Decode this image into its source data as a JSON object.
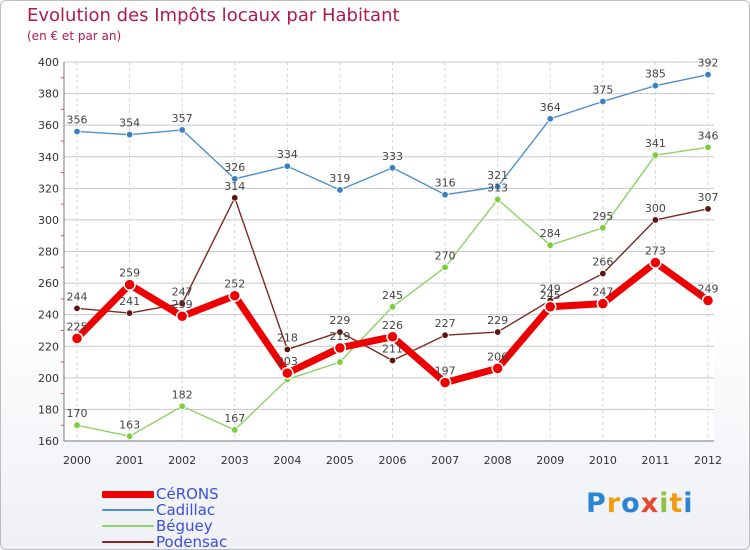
{
  "title": "Evolution des Impôts locaux par Habitant",
  "subtitle": "(en € et par an)",
  "logo": {
    "letters": [
      "P",
      "r",
      "o",
      "x",
      "i",
      "t",
      "i"
    ],
    "colors": [
      "#2a83d3",
      "#f39c12",
      "#2a83d3",
      "#e64a2e",
      "#8fc440",
      "#f39c12",
      "#2a83d3"
    ]
  },
  "chart_data": {
    "type": "line",
    "title": "Evolution des Impôts locaux par Habitant",
    "ylabel": "(en € et par an)",
    "x": [
      "2000",
      "2001",
      "2002",
      "2003",
      "2004",
      "2005",
      "2006",
      "2007",
      "2008",
      "2009",
      "2010",
      "2011",
      "2012"
    ],
    "ylim": [
      160,
      400
    ],
    "yticks": [
      "160",
      "180",
      "200",
      "220",
      "240",
      "260",
      "280",
      "300",
      "320",
      "340",
      "360",
      "380",
      "400"
    ],
    "grid": true,
    "series": [
      {
        "name": "Cadillac",
        "color": "#4f8fce",
        "point_color": "#3b7fc4",
        "values": [
          356,
          354,
          357,
          326,
          334,
          319,
          333,
          316,
          321,
          364,
          375,
          385,
          392
        ],
        "labels": [
          "356",
          "354",
          "357",
          "326",
          "334",
          "319",
          "333",
          "316",
          "321",
          "364",
          "375",
          "385",
          "392"
        ]
      },
      {
        "name": "Béguey",
        "color": "#8fd26a",
        "point_color": "#7ccd3a",
        "values": [
          170,
          163,
          182,
          167,
          199,
          210,
          245,
          270,
          313,
          284,
          295,
          341,
          346
        ],
        "labels": [
          "170",
          "163",
          "182",
          "167",
          "",
          "",
          "245",
          "270",
          "313",
          "284",
          "295",
          "341",
          "346"
        ]
      },
      {
        "name": "Podensac",
        "color": "#7a2a22",
        "point_color": "#5e1410",
        "values": [
          244,
          241,
          247,
          314,
          218,
          229,
          211,
          227,
          229,
          249,
          266,
          300,
          307
        ],
        "labels": [
          "244",
          "241",
          "247",
          "314",
          "218",
          "229",
          "211",
          "227",
          "229",
          "249",
          "266",
          "300",
          "307"
        ]
      },
      {
        "name": "CéRONS",
        "color": "#ee0000",
        "point_color": "#ee0000",
        "values": [
          225,
          259,
          239,
          252,
          203,
          219,
          226,
          197,
          206,
          245,
          247,
          273,
          249
        ],
        "labels": [
          "225",
          "259",
          "239",
          "252",
          "203",
          "219",
          "226",
          "197",
          "206",
          "245",
          "247",
          "273",
          "249"
        ]
      }
    ],
    "legend": [
      {
        "name": "CéRONS",
        "color": "#ee0000"
      },
      {
        "name": "Cadillac",
        "color": "#4f8fce"
      },
      {
        "name": "Béguey",
        "color": "#8fd26a"
      },
      {
        "name": "Podensac",
        "color": "#7a2a22"
      }
    ],
    "legend_position": "bottom-left"
  }
}
